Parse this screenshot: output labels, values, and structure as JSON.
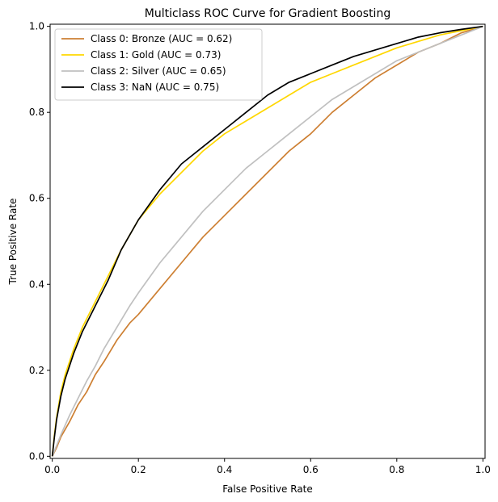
{
  "chart_data": {
    "type": "line",
    "title": "Multiclass ROC Curve for Gradient Boosting",
    "xlabel": "False Positive Rate",
    "ylabel": "True Positive Rate",
    "xlim": [
      -0.005,
      1.005
    ],
    "ylim": [
      -0.005,
      1.005
    ],
    "xticks": [
      0.0,
      0.2,
      0.4,
      0.6,
      0.8,
      1.0
    ],
    "yticks": [
      0.0,
      0.2,
      0.4,
      0.6,
      0.8,
      1.0
    ],
    "xtick_labels": [
      "0.0",
      "0.2",
      "0.4",
      "0.6",
      "0.8",
      "1.0"
    ],
    "ytick_labels": [
      "0.0",
      "0.2",
      "0.4",
      "0.6",
      "0.8",
      "1.0"
    ],
    "grid": false,
    "legend_position": "upper-left",
    "series": [
      {
        "name": "Class 0: Bronze (AUC = 0.62)",
        "color": "#cd7f32",
        "points": [
          [
            0,
            0
          ],
          [
            0.01,
            0.02
          ],
          [
            0.02,
            0.045
          ],
          [
            0.04,
            0.08
          ],
          [
            0.06,
            0.12
          ],
          [
            0.08,
            0.15
          ],
          [
            0.1,
            0.19
          ],
          [
            0.12,
            0.22
          ],
          [
            0.15,
            0.27
          ],
          [
            0.18,
            0.31
          ],
          [
            0.2,
            0.33
          ],
          [
            0.25,
            0.39
          ],
          [
            0.3,
            0.45
          ],
          [
            0.35,
            0.51
          ],
          [
            0.4,
            0.56
          ],
          [
            0.45,
            0.61
          ],
          [
            0.5,
            0.66
          ],
          [
            0.55,
            0.71
          ],
          [
            0.6,
            0.75
          ],
          [
            0.65,
            0.8
          ],
          [
            0.7,
            0.84
          ],
          [
            0.75,
            0.88
          ],
          [
            0.8,
            0.91
          ],
          [
            0.85,
            0.94
          ],
          [
            0.9,
            0.96
          ],
          [
            0.95,
            0.985
          ],
          [
            1.0,
            1.0
          ]
        ]
      },
      {
        "name": "Class 1: Gold (AUC = 0.73)",
        "color": "#ffd700",
        "points": [
          [
            0,
            0
          ],
          [
            0.005,
            0.05
          ],
          [
            0.01,
            0.09
          ],
          [
            0.02,
            0.15
          ],
          [
            0.03,
            0.19
          ],
          [
            0.05,
            0.25
          ],
          [
            0.07,
            0.3
          ],
          [
            0.1,
            0.36
          ],
          [
            0.13,
            0.42
          ],
          [
            0.16,
            0.48
          ],
          [
            0.2,
            0.55
          ],
          [
            0.25,
            0.61
          ],
          [
            0.3,
            0.66
          ],
          [
            0.35,
            0.71
          ],
          [
            0.4,
            0.75
          ],
          [
            0.45,
            0.78
          ],
          [
            0.5,
            0.81
          ],
          [
            0.55,
            0.84
          ],
          [
            0.6,
            0.87
          ],
          [
            0.65,
            0.89
          ],
          [
            0.7,
            0.91
          ],
          [
            0.75,
            0.93
          ],
          [
            0.8,
            0.95
          ],
          [
            0.85,
            0.965
          ],
          [
            0.9,
            0.98
          ],
          [
            0.95,
            0.99
          ],
          [
            1.0,
            1.0
          ]
        ]
      },
      {
        "name": "Class 2: Silver (AUC = 0.65)",
        "color": "#c0c0c0",
        "points": [
          [
            0,
            0
          ],
          [
            0.01,
            0.025
          ],
          [
            0.02,
            0.05
          ],
          [
            0.04,
            0.095
          ],
          [
            0.06,
            0.135
          ],
          [
            0.08,
            0.175
          ],
          [
            0.1,
            0.21
          ],
          [
            0.12,
            0.25
          ],
          [
            0.15,
            0.3
          ],
          [
            0.18,
            0.35
          ],
          [
            0.2,
            0.38
          ],
          [
            0.25,
            0.45
          ],
          [
            0.3,
            0.51
          ],
          [
            0.35,
            0.57
          ],
          [
            0.4,
            0.62
          ],
          [
            0.45,
            0.67
          ],
          [
            0.5,
            0.71
          ],
          [
            0.55,
            0.75
          ],
          [
            0.6,
            0.79
          ],
          [
            0.65,
            0.83
          ],
          [
            0.7,
            0.86
          ],
          [
            0.75,
            0.89
          ],
          [
            0.8,
            0.92
          ],
          [
            0.85,
            0.94
          ],
          [
            0.9,
            0.96
          ],
          [
            0.95,
            0.98
          ],
          [
            1.0,
            1.0
          ]
        ]
      },
      {
        "name": "Class 3: NaN (AUC = 0.75)",
        "color": "#000000",
        "points": [
          [
            0,
            0
          ],
          [
            0.005,
            0.045
          ],
          [
            0.01,
            0.085
          ],
          [
            0.02,
            0.14
          ],
          [
            0.03,
            0.18
          ],
          [
            0.05,
            0.24
          ],
          [
            0.07,
            0.29
          ],
          [
            0.1,
            0.35
          ],
          [
            0.13,
            0.41
          ],
          [
            0.16,
            0.48
          ],
          [
            0.2,
            0.55
          ],
          [
            0.25,
            0.62
          ],
          [
            0.3,
            0.68
          ],
          [
            0.35,
            0.72
          ],
          [
            0.4,
            0.76
          ],
          [
            0.45,
            0.8
          ],
          [
            0.5,
            0.84
          ],
          [
            0.55,
            0.87
          ],
          [
            0.6,
            0.89
          ],
          [
            0.65,
            0.91
          ],
          [
            0.7,
            0.93
          ],
          [
            0.75,
            0.945
          ],
          [
            0.8,
            0.96
          ],
          [
            0.85,
            0.975
          ],
          [
            0.9,
            0.985
          ],
          [
            0.95,
            0.993
          ],
          [
            1.0,
            1.0
          ]
        ]
      }
    ]
  }
}
